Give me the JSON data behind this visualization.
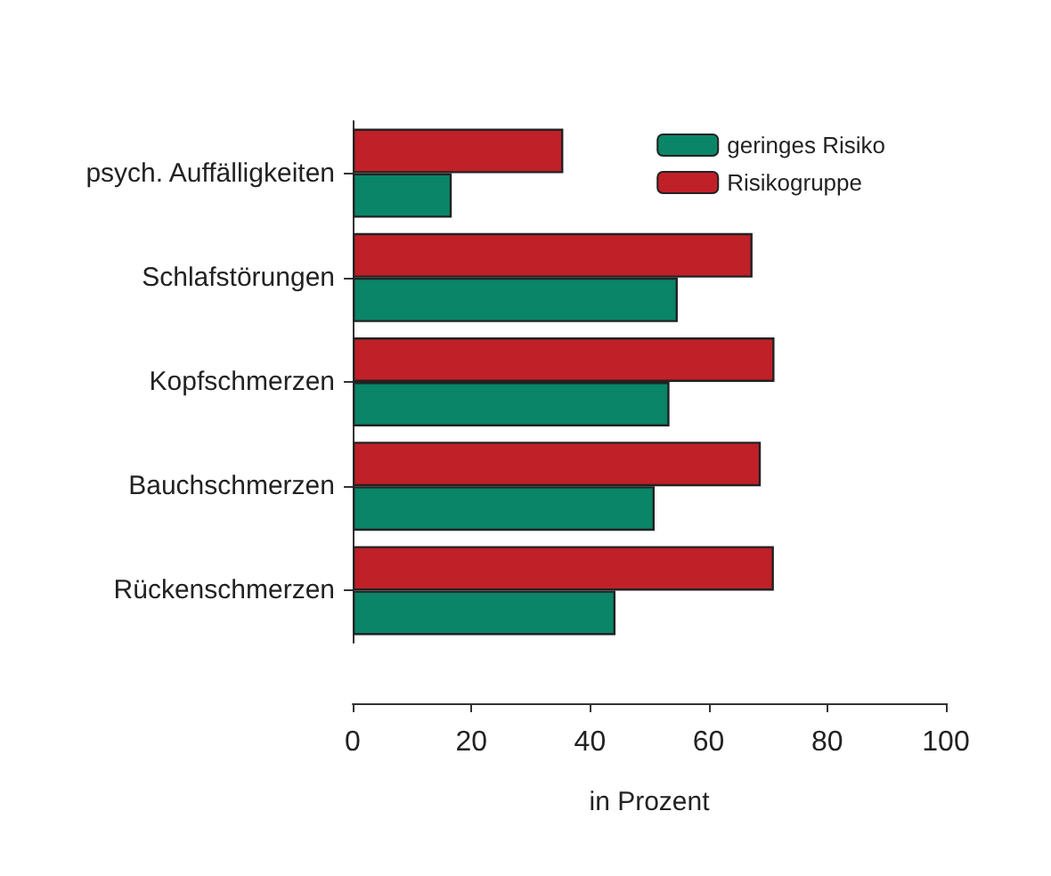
{
  "chart_data": {
    "type": "bar",
    "orientation": "horizontal",
    "xlabel": "in Prozent",
    "categories": [
      "psych. Auffälligkeiten",
      "Schlafstörungen",
      "Kopfschmerzen",
      "Bauchschmerzen",
      "Rückenschmerzen"
    ],
    "series": [
      {
        "name": "geringes Risiko",
        "color": "#0a8568",
        "values": [
          16.7,
          54.8,
          53.4,
          50.9,
          44.3
        ]
      },
      {
        "name": "Risikogruppe",
        "color": "#c02028",
        "values": [
          35.5,
          67.4,
          71.1,
          68.8,
          71
        ]
      }
    ],
    "xlim": [
      0,
      100
    ],
    "xticks": [
      0,
      20,
      40,
      60,
      80,
      100
    ],
    "grid": false,
    "legend": "top right"
  }
}
